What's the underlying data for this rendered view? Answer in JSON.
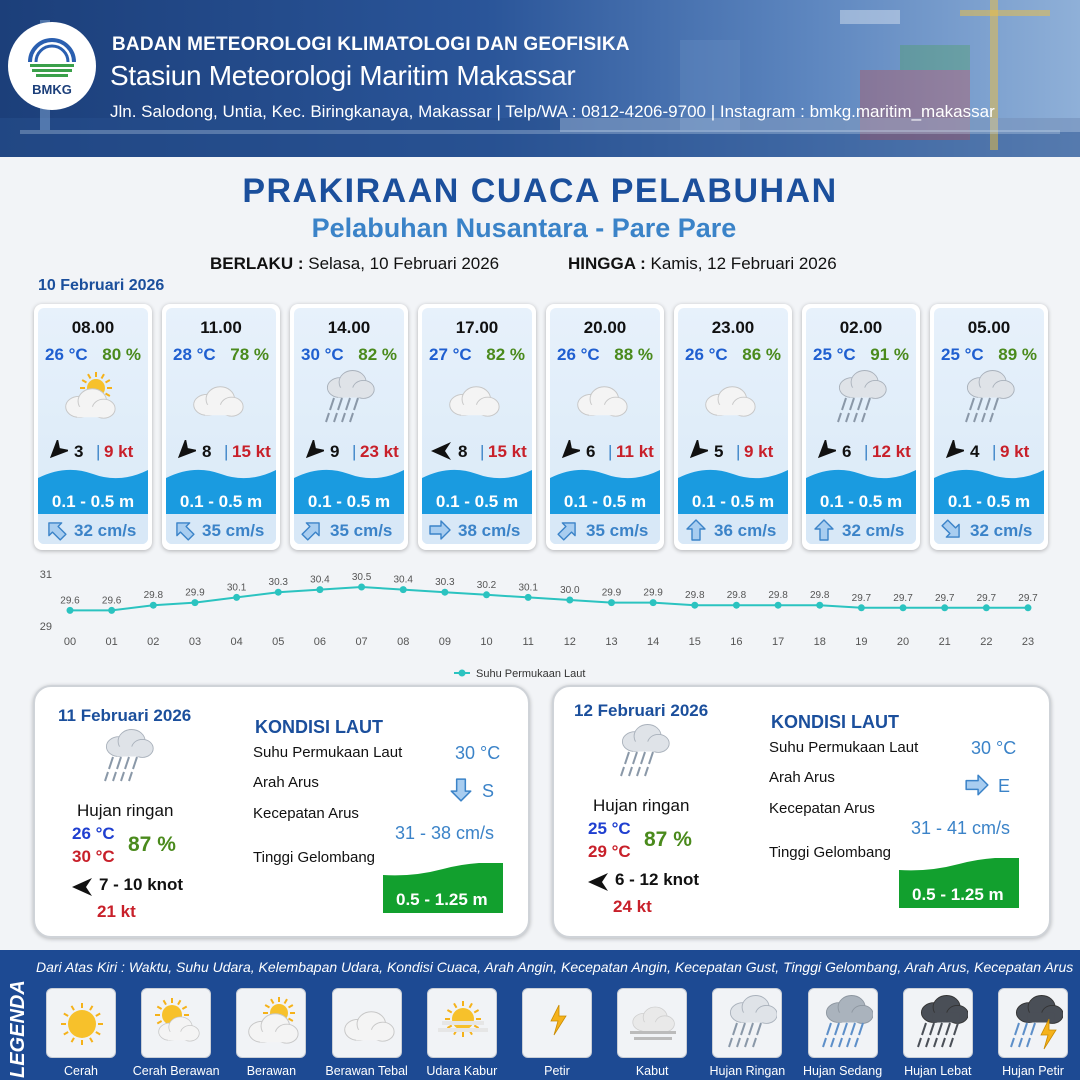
{
  "header": {
    "agency": "BADAN METEOROLOGI KLIMATOLOGI DAN GEOFISIKA",
    "station": "Stasiun Meteorologi Maritim Makassar",
    "address": "Jln. Salodong, Untia, Kec. Biringkanaya, Makassar | Telp/WA : 0812-4206-9700 | Instagram : bmkg.maritim_makassar",
    "logo_text": "BMKG"
  },
  "title": "PRAKIRAAN CUACA PELABUHAN",
  "subtitle": "Pelabuhan Nusantara - Pare Pare",
  "validity": {
    "from_label": "BERLAKU :",
    "from_value": "Selasa, 10 Februari 2026",
    "to_label": "HINGGA :",
    "to_value": "Kamis, 12 Februari 2026"
  },
  "today_label": "10 Februari 2026",
  "forecasts": [
    {
      "time": "08.00",
      "temp": "26 °C",
      "rh": "80 %",
      "icon": "partly-cloudy-icon",
      "wind_dir_deg": 225,
      "wind": "3",
      "gust": "9 kt",
      "wave": "0.1 - 0.5 m",
      "current_dir_deg": 315,
      "current": "32 cm/s"
    },
    {
      "time": "11.00",
      "temp": "28 °C",
      "rh": "78 %",
      "icon": "cloudy-icon",
      "wind_dir_deg": 225,
      "wind": "8",
      "gust": "15 kt",
      "wave": "0.1 - 0.5 m",
      "current_dir_deg": 315,
      "current": "35 cm/s"
    },
    {
      "time": "14.00",
      "temp": "30 °C",
      "rh": "82 %",
      "icon": "light-rain-icon",
      "wind_dir_deg": 225,
      "wind": "9",
      "gust": "23 kt",
      "wave": "0.1 - 0.5 m",
      "current_dir_deg": 45,
      "current": "35 cm/s"
    },
    {
      "time": "17.00",
      "temp": "27 °C",
      "rh": "82 %",
      "icon": "cloudy-icon",
      "wind_dir_deg": 270,
      "wind": "8",
      "gust": "15 kt",
      "wave": "0.1 - 0.5 m",
      "current_dir_deg": 90,
      "current": "38 cm/s"
    },
    {
      "time": "20.00",
      "temp": "26 °C",
      "rh": "88 %",
      "icon": "cloudy-icon",
      "wind_dir_deg": 225,
      "wind": "6",
      "gust": "11 kt",
      "wave": "0.1 - 0.5 m",
      "current_dir_deg": 45,
      "current": "35 cm/s"
    },
    {
      "time": "23.00",
      "temp": "26 °C",
      "rh": "86 %",
      "icon": "cloudy-icon",
      "wind_dir_deg": 225,
      "wind": "5",
      "gust": "9 kt",
      "wave": "0.1 - 0.5 m",
      "current_dir_deg": 0,
      "current": "36 cm/s"
    },
    {
      "time": "02.00",
      "temp": "25 °C",
      "rh": "91 %",
      "icon": "light-rain-icon",
      "wind_dir_deg": 225,
      "wind": "6",
      "gust": "12 kt",
      "wave": "0.1 - 0.5 m",
      "current_dir_deg": 0,
      "current": "32 cm/s"
    },
    {
      "time": "05.00",
      "temp": "25 °C",
      "rh": "89 %",
      "icon": "light-rain-icon",
      "wind_dir_deg": 225,
      "wind": "4",
      "gust": "9 kt",
      "wave": "0.1 - 0.5 m",
      "current_dir_deg": 135,
      "current": "32 cm/s"
    }
  ],
  "chart_data": {
    "type": "line",
    "title": "",
    "xlabel": "",
    "ylabel": "",
    "categories": [
      "00",
      "01",
      "02",
      "03",
      "04",
      "05",
      "06",
      "07",
      "08",
      "09",
      "10",
      "11",
      "12",
      "13",
      "14",
      "15",
      "16",
      "17",
      "18",
      "19",
      "20",
      "21",
      "22",
      "23"
    ],
    "series": [
      {
        "name": "Suhu Permukaan Laut",
        "values": [
          29.6,
          29.6,
          29.8,
          29.9,
          30.1,
          30.3,
          30.4,
          30.5,
          30.4,
          30.3,
          30.2,
          30.1,
          30.0,
          29.9,
          29.9,
          29.8,
          29.8,
          29.8,
          29.8,
          29.7,
          29.7,
          29.7,
          29.7,
          29.7
        ],
        "labels": [
          "29.6",
          "29.6",
          "29.8",
          "29.9",
          "30.1",
          "30.3",
          "30.4",
          "30.5",
          "30.4",
          "30.3",
          "30.2",
          "30.1",
          "30.0",
          "29.9",
          "29.9",
          "29.8",
          "29.8",
          "29.8",
          "29.8",
          "29.7",
          "29.7",
          "29.7",
          "29.7",
          "29.7"
        ]
      }
    ],
    "ylim": [
      29,
      31
    ],
    "yticks": [
      "29",
      "31"
    ],
    "color": "#2bc3c0",
    "grid": false,
    "legend_position": "bottom"
  },
  "days": [
    {
      "date": "11 Februari 2026",
      "condition": "Hujan ringan",
      "icon": "light-rain-icon",
      "tmin": "26 °C",
      "tmax": "30 °C",
      "rh": "87 %",
      "wind_dir_deg": 270,
      "wind": "7  - 10 knot",
      "gust": "21 kt",
      "sea_heading": "KONDISI LAUT",
      "sst_label": "Suhu Permukaan Laut",
      "sst": "30 °C",
      "current_dir_label": "Arah Arus",
      "current_dir_deg": 180,
      "current_dir": "S",
      "current_speed_label": "Kecepatan Arus",
      "current_speed": "31 - 38 cm/s",
      "wave_label": "Tinggi Gelombang",
      "wave": "0.5 - 1.25 m"
    },
    {
      "date": "12 Februari 2026",
      "condition": "Hujan ringan",
      "icon": "light-rain-icon",
      "tmin": "25 °C",
      "tmax": "29 °C",
      "rh": "87 %",
      "wind_dir_deg": 270,
      "wind": "6  - 12 knot",
      "gust": "24 kt",
      "sea_heading": "KONDISI LAUT",
      "sst_label": "Suhu Permukaan Laut",
      "sst": "30 °C",
      "current_dir_label": "Arah Arus",
      "current_dir_deg": 90,
      "current_dir": "E",
      "current_speed_label": "Kecepatan Arus",
      "current_speed": "31 - 41 cm/s",
      "wave_label": "Tinggi Gelombang",
      "wave": "0.5 - 1.25 m"
    }
  ],
  "legend": {
    "title": "LEGENDA",
    "description": "Dari Atas Kiri : Waktu, Suhu Udara, Kelembapan Udara, Kondisi Cuaca, Arah Angin, Kecepatan Angin, Kecepatan Gust, Tinggi Gelombang, Arah Arus, Kecepatan Arus",
    "items": [
      {
        "label": "Cerah",
        "icon": "sunny-icon"
      },
      {
        "label": "Cerah Berawan",
        "icon": "mostly-sunny-icon"
      },
      {
        "label": "Berawan",
        "icon": "partly-cloudy-icon"
      },
      {
        "label": "Berawan Tebal",
        "icon": "cloudy-icon"
      },
      {
        "label": "Udara Kabur",
        "icon": "haze-icon"
      },
      {
        "label": "Petir",
        "icon": "lightning-icon"
      },
      {
        "label": "Kabut",
        "icon": "fog-icon"
      },
      {
        "label": "Hujan Ringan",
        "icon": "light-rain-icon"
      },
      {
        "label": "Hujan Sedang",
        "icon": "moderate-rain-icon"
      },
      {
        "label": "Hujan Lebat",
        "icon": "heavy-rain-icon"
      },
      {
        "label": "Hujan Petir",
        "icon": "thunderstorm-icon"
      }
    ]
  }
}
